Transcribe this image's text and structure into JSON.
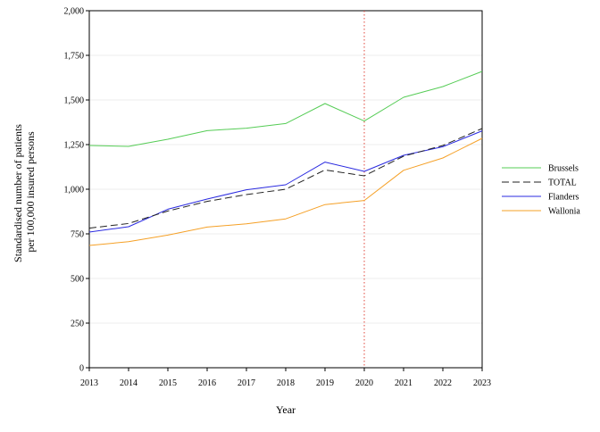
{
  "chart_data": {
    "type": "line",
    "xlabel": "Year",
    "ylabel_lines": [
      "Standardised number of patients",
      "per 100,000 insured persons"
    ],
    "x": [
      2013,
      2014,
      2015,
      2016,
      2017,
      2018,
      2019,
      2020,
      2021,
      2022,
      2023
    ],
    "xlim": [
      2013,
      2023
    ],
    "ylim": [
      0,
      2000
    ],
    "yticks": [
      0,
      250,
      500,
      750,
      1000,
      1250,
      1500,
      1750,
      2000
    ],
    "ytick_labels": [
      "0",
      "250",
      "500",
      "750",
      "1,000",
      "1,250",
      "1,500",
      "1,750",
      "2,000"
    ],
    "grid": "horizontal",
    "legend_position": "right",
    "reference_line": {
      "x": 2020,
      "color": "#e0453a",
      "style": "dotted"
    },
    "series": [
      {
        "name": "Brussels",
        "color": "#55cc55",
        "dash": "solid",
        "values": [
          1245,
          1240,
          1280,
          1328,
          1342,
          1368,
          1480,
          1382,
          1515,
          1575,
          1660
        ]
      },
      {
        "name": "TOTAL",
        "color": "#222222",
        "dash": "dashed",
        "values": [
          782,
          808,
          878,
          932,
          970,
          1000,
          1108,
          1075,
          1185,
          1245,
          1340
        ]
      },
      {
        "name": "Flanders",
        "color": "#2a2ae0",
        "dash": "solid",
        "values": [
          760,
          790,
          888,
          945,
          997,
          1025,
          1152,
          1100,
          1190,
          1238,
          1327
        ]
      },
      {
        "name": "Wallonia",
        "color": "#f5a026",
        "dash": "solid",
        "values": [
          685,
          706,
          743,
          788,
          806,
          834,
          914,
          937,
          1106,
          1175,
          1285
        ]
      }
    ]
  }
}
